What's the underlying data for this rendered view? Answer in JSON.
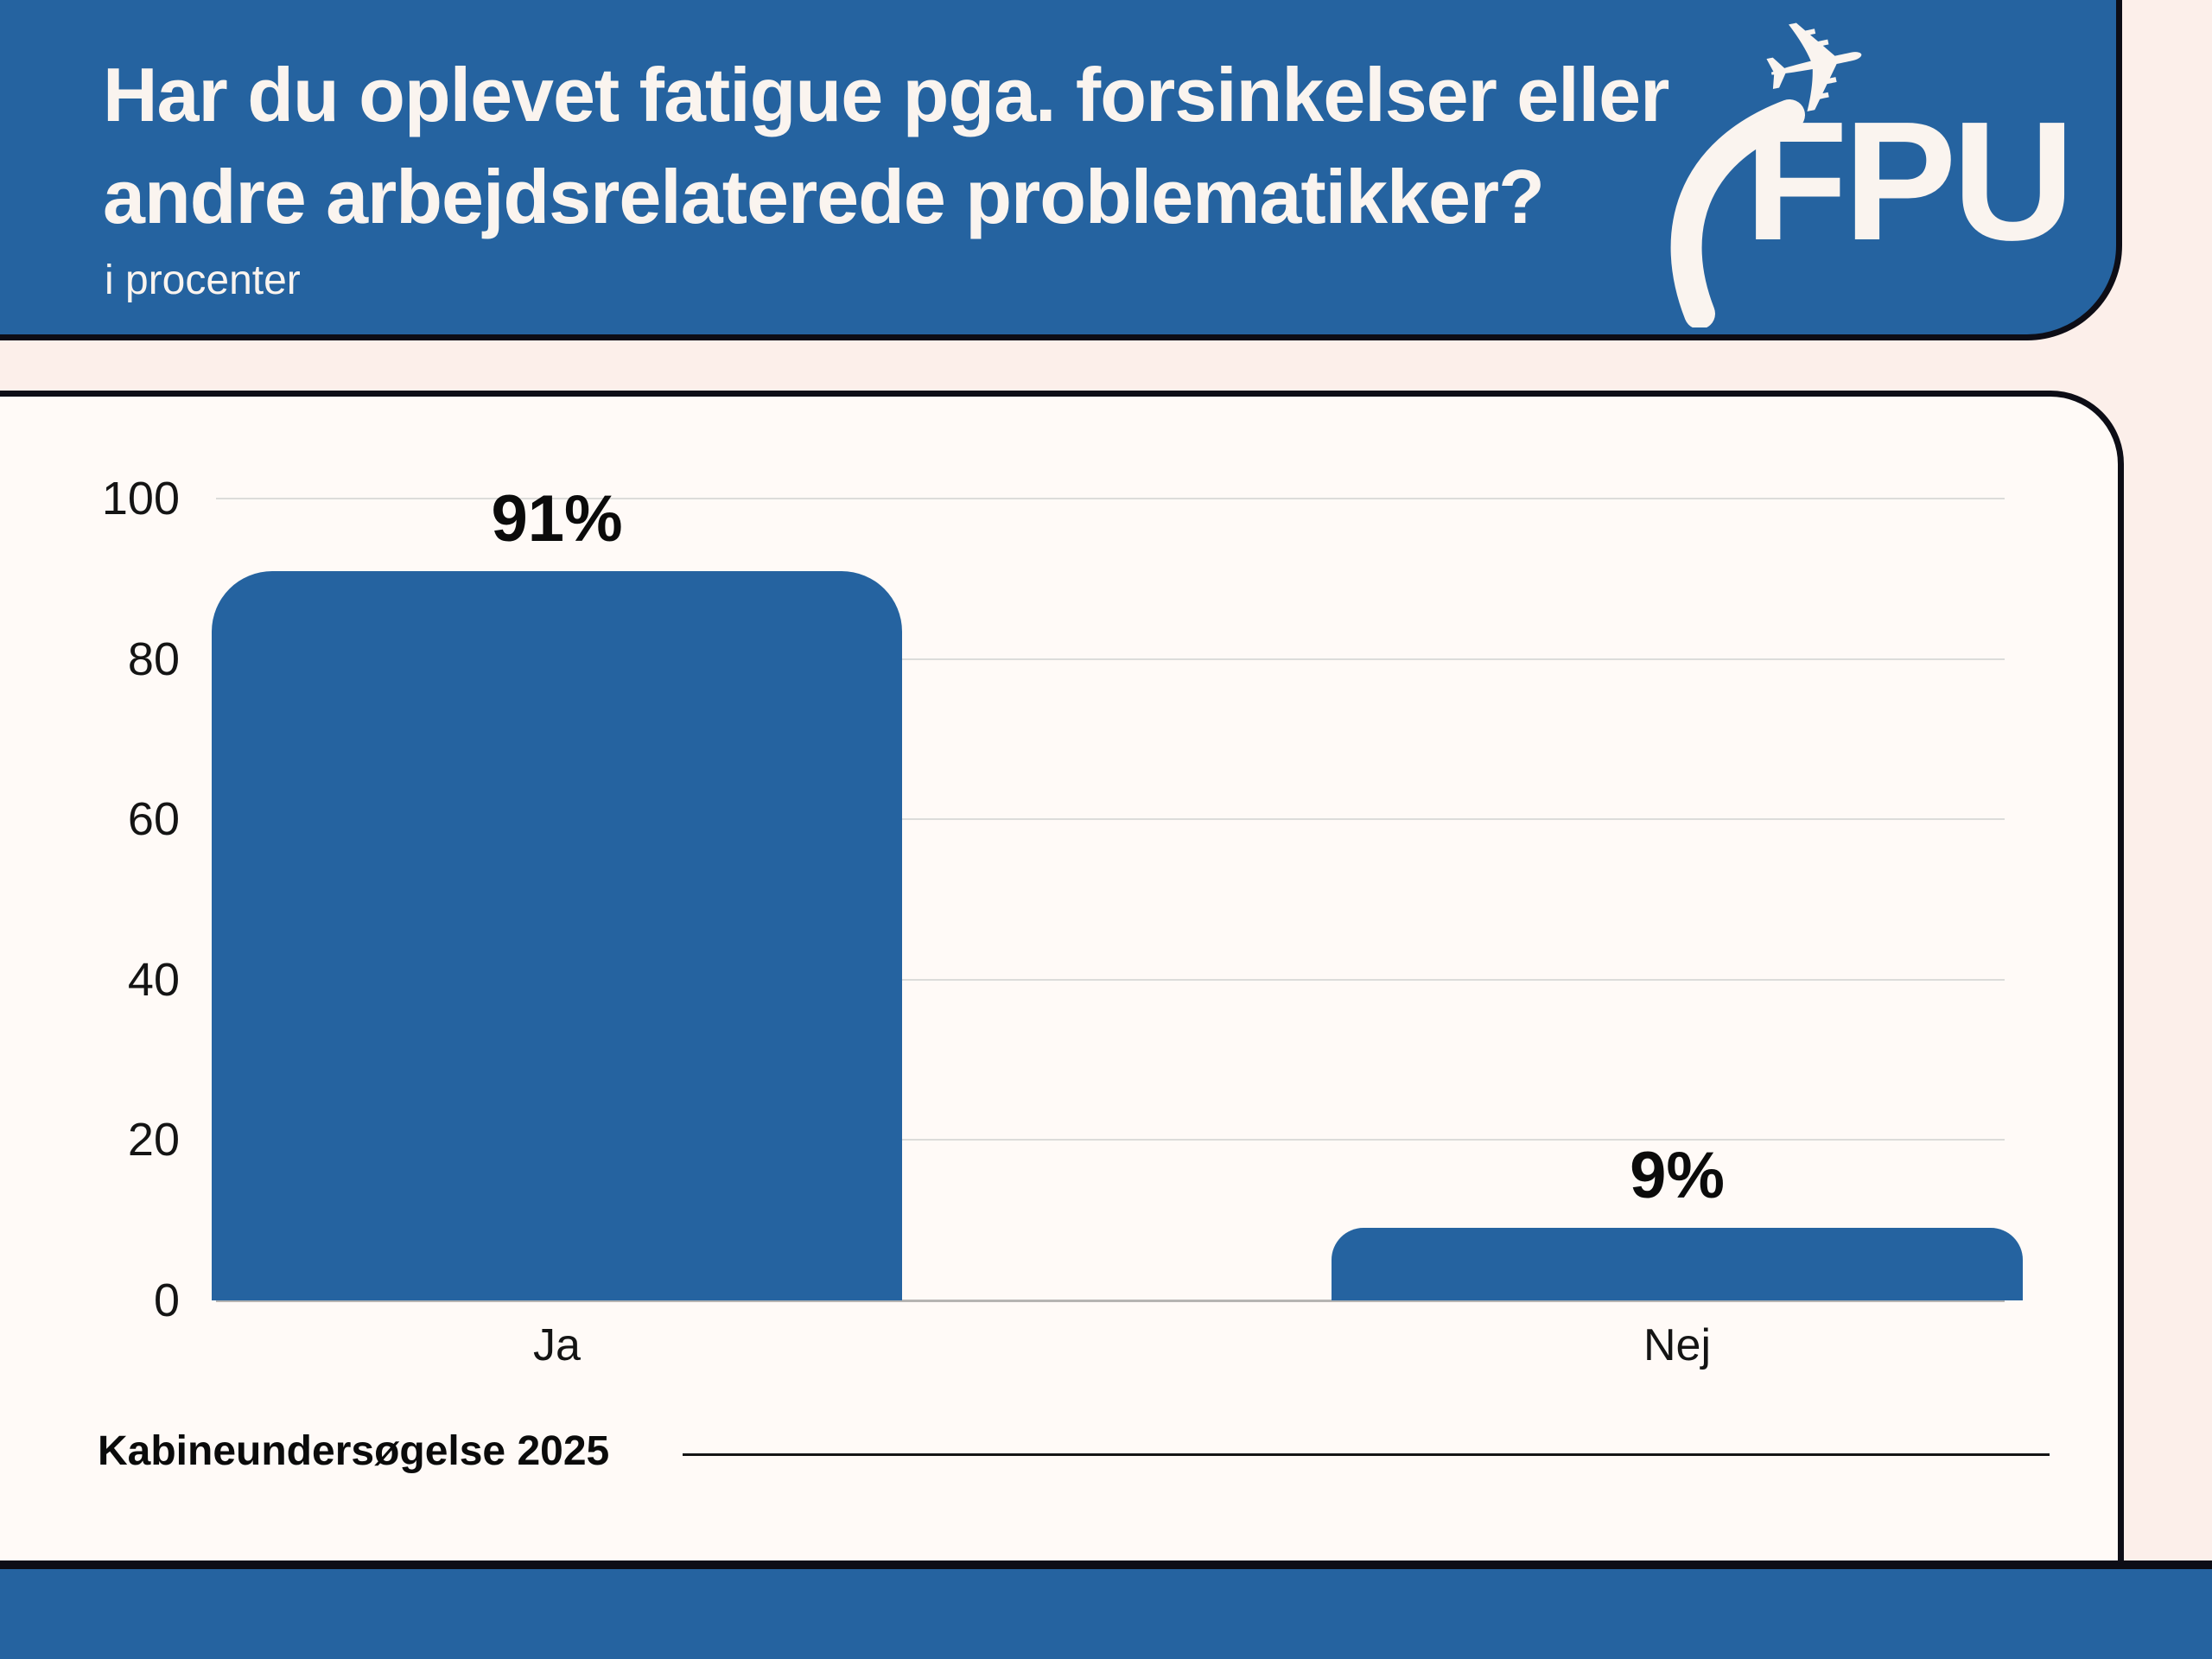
{
  "header": {
    "title_line1": "Har du oplevet fatigue pga. forsinkelser eller",
    "title_line2": "andre arbejdsrelaterede problematikker?",
    "subtitle": "i procenter",
    "logo_text": "FPU",
    "logo_icon": "airplane-swoosh-icon",
    "plane_glyph": "✈"
  },
  "chart_data": {
    "type": "bar",
    "title": "Har du oplevet fatigue pga. forsinkelser eller andre arbejdsrelaterede problematikker?",
    "subtitle": "i procenter",
    "categories": [
      "Ja",
      "Nej"
    ],
    "values": [
      91,
      9
    ],
    "value_labels": [
      "91%",
      "9%"
    ],
    "yticks": [
      100,
      80,
      60,
      40,
      20,
      0
    ],
    "ylim": [
      0,
      100
    ],
    "grid": true,
    "legend": "none",
    "bar_color": "#2563A0"
  },
  "footer": {
    "source_label": "Kabineundersøgelse 2025"
  },
  "colors": {
    "header_blue": "#2563A0",
    "bar_blue": "#2563A0",
    "outer_background": "#FCEFEA",
    "card_background": "#FFFAF7",
    "border_black": "#0D0D16",
    "gridline": "#DCDCDA",
    "title_text": "#FAF4EF",
    "body_text": "#141414"
  }
}
